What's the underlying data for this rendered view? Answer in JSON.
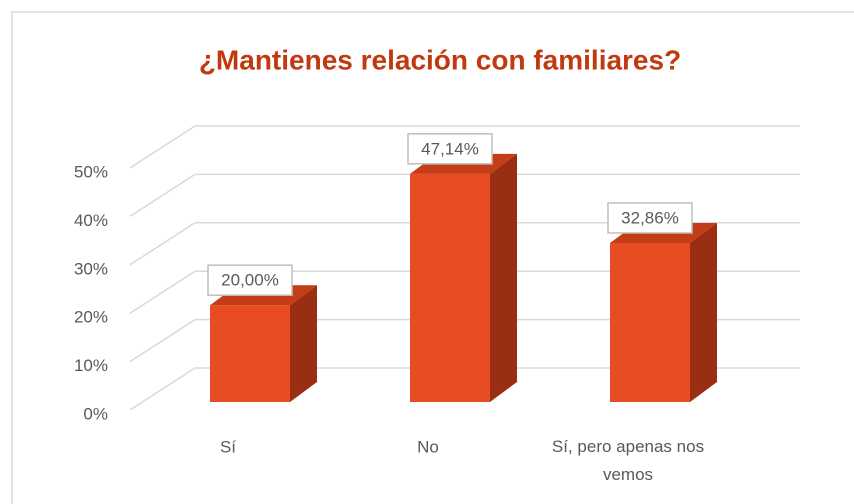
{
  "chart_data": {
    "type": "bar3d",
    "title": "¿Mantienes relación con familiares?",
    "categories": [
      "Sí",
      "No",
      "Sí, pero apenas nos vemos"
    ],
    "values": [
      20.0,
      47.14,
      32.86
    ],
    "value_labels": [
      "20,00%",
      "47,14%",
      "32,86%"
    ],
    "color": "#e84c22",
    "ylim": [
      0,
      50
    ],
    "yticks": [
      {
        "value": 0,
        "label": "0%"
      },
      {
        "value": 10,
        "label": "10%"
      },
      {
        "value": 20,
        "label": "20%"
      },
      {
        "value": 30,
        "label": "30%"
      },
      {
        "value": 40,
        "label": "40%"
      },
      {
        "value": 50,
        "label": "50%"
      }
    ],
    "grid": true
  }
}
